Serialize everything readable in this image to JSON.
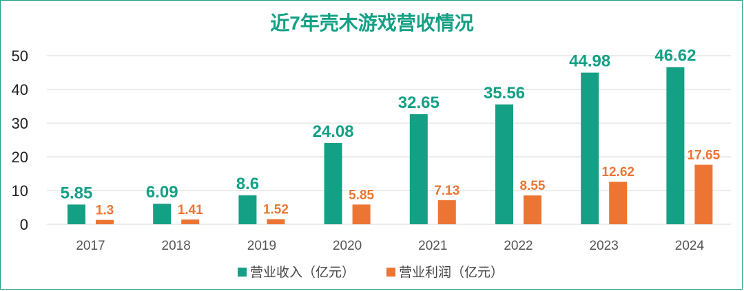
{
  "colors": {
    "revenue": "#14a085",
    "profit": "#ec7533",
    "title": "#14a085",
    "grid": "#d9d9d9"
  },
  "chart_data": {
    "type": "bar",
    "title": "近7年壳木游戏营收情况",
    "categories": [
      "2017",
      "2018",
      "2019",
      "2020",
      "2021",
      "2022",
      "2023",
      "2024"
    ],
    "series": [
      {
        "name": "营业收入（亿元）",
        "values": [
          5.85,
          6.09,
          8.6,
          24.08,
          32.65,
          35.56,
          44.98,
          46.62
        ],
        "labels": [
          "5.85",
          "6.09",
          "8.6",
          "24.08",
          "32.65",
          "35.56",
          "44.98",
          "46.62"
        ]
      },
      {
        "name": "营业利润（亿元）",
        "values": [
          1.3,
          1.41,
          1.52,
          5.85,
          7.13,
          8.55,
          12.62,
          17.65
        ],
        "labels": [
          "1.3",
          "1.41",
          "1.52",
          "5.85",
          "7.13",
          "8.55",
          "12.62",
          "17.65"
        ]
      }
    ],
    "yticks": [
      "0",
      "10",
      "20",
      "30",
      "40",
      "50"
    ],
    "ylim": [
      0,
      50
    ],
    "xlabel": "",
    "ylabel": "",
    "grid": true,
    "legend": "bottom"
  }
}
